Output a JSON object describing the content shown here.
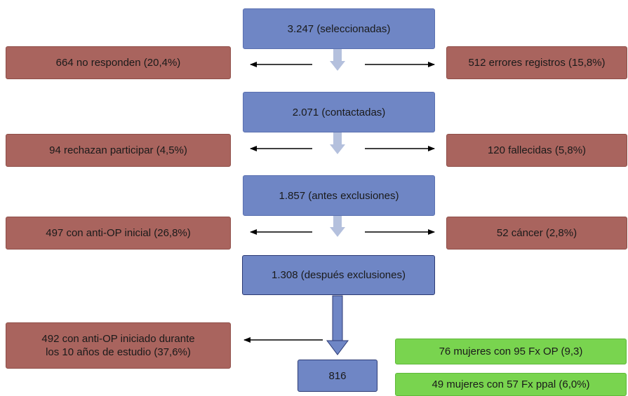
{
  "flow": {
    "step1": "3.247 (seleccionadas)",
    "step1_left": "664 no responden (20,4%)",
    "step1_right": "512 errores registros (15,8%)",
    "step2": "2.071 (contactadas)",
    "step2_left": "94 rechazan participar (4,5%)",
    "step2_right": "120 fallecidas (5,8%)",
    "step3": "1.857 (antes exclusiones)",
    "step3_left": "497 con anti-OP inicial (26,8%)",
    "step3_right": "52 cáncer (2,8%)",
    "step4": "1.308 (después exclusiones)",
    "step4_left_line1": "492 con anti-OP iniciado durante",
    "step4_left_line2": "los 10 años de estudio (37,6%)",
    "final": "816",
    "outcome1": "76 mujeres con 95 Fx OP (9,3)",
    "outcome2": "49 mujeres con 57 Fx ppal (6,0%)"
  },
  "colors": {
    "main_box": "#6f86c5",
    "excluded_box": "#a9645e",
    "outcome_box": "#79d44f",
    "down_arrow": "#b4c0dd"
  }
}
